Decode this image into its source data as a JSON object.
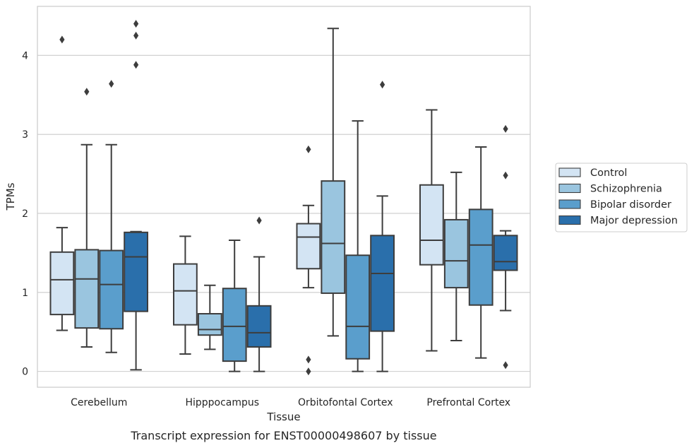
{
  "caption": "Transcript expression for ENST00000498607 by tissue",
  "chart_data": {
    "type": "box",
    "xlabel": "Tissue",
    "ylabel": "TPMs",
    "ylim": [
      -0.2,
      4.62
    ],
    "yticks": [
      0,
      1,
      2,
      3,
      4
    ],
    "grid": true,
    "legend_position": "right",
    "categories": [
      "Cerebellum",
      "Hipppocampus",
      "Orbitofontal Cortex",
      "Prefrontal Cortex"
    ],
    "series": [
      {
        "name": "Control",
        "color": "#d3e4f3",
        "boxes": [
          {
            "whisker_low": 0.52,
            "q1": 0.72,
            "median": 1.16,
            "q3": 1.51,
            "whisker_high": 1.82,
            "outliers": [
              4.2
            ]
          },
          {
            "whisker_low": 0.22,
            "q1": 0.59,
            "median": 1.02,
            "q3": 1.36,
            "whisker_high": 1.71,
            "outliers": []
          },
          {
            "whisker_low": 1.06,
            "q1": 1.3,
            "median": 1.7,
            "q3": 1.87,
            "whisker_high": 2.1,
            "outliers": [
              2.81,
              0.15,
              0.0
            ]
          },
          {
            "whisker_low": 0.26,
            "q1": 1.35,
            "median": 1.66,
            "q3": 2.36,
            "whisker_high": 3.31,
            "outliers": []
          }
        ]
      },
      {
        "name": "Schizophrenia",
        "color": "#9ac5df",
        "boxes": [
          {
            "whisker_low": 0.31,
            "q1": 0.55,
            "median": 1.17,
            "q3": 1.54,
            "whisker_high": 2.87,
            "outliers": [
              3.54
            ]
          },
          {
            "whisker_low": 0.28,
            "q1": 0.46,
            "median": 0.53,
            "q3": 0.73,
            "whisker_high": 1.09,
            "outliers": []
          },
          {
            "whisker_low": 0.45,
            "q1": 0.99,
            "median": 1.62,
            "q3": 2.41,
            "whisker_high": 4.34,
            "outliers": []
          },
          {
            "whisker_low": 0.39,
            "q1": 1.06,
            "median": 1.4,
            "q3": 1.92,
            "whisker_high": 2.52,
            "outliers": []
          }
        ]
      },
      {
        "name": "Bipolar disorder",
        "color": "#5a9ecc",
        "boxes": [
          {
            "whisker_low": 0.24,
            "q1": 0.54,
            "median": 1.1,
            "q3": 1.53,
            "whisker_high": 2.87,
            "outliers": [
              3.64
            ]
          },
          {
            "whisker_low": 0.0,
            "q1": 0.13,
            "median": 0.57,
            "q3": 1.05,
            "whisker_high": 1.66,
            "outliers": []
          },
          {
            "whisker_low": 0.0,
            "q1": 0.16,
            "median": 0.57,
            "q3": 1.47,
            "whisker_high": 3.17,
            "outliers": []
          },
          {
            "whisker_low": 0.17,
            "q1": 0.84,
            "median": 1.6,
            "q3": 2.05,
            "whisker_high": 2.84,
            "outliers": []
          }
        ]
      },
      {
        "name": "Major depression",
        "color": "#2a6fab",
        "boxes": [
          {
            "whisker_low": 0.02,
            "q1": 0.76,
            "median": 1.45,
            "q3": 1.76,
            "whisker_high": 1.77,
            "outliers": [
              4.4,
              4.25,
              3.88
            ]
          },
          {
            "whisker_low": 0.0,
            "q1": 0.31,
            "median": 0.49,
            "q3": 0.83,
            "whisker_high": 1.45,
            "outliers": [
              1.91
            ]
          },
          {
            "whisker_low": 0.0,
            "q1": 0.51,
            "median": 1.24,
            "q3": 1.72,
            "whisker_high": 2.22,
            "outliers": [
              3.63
            ]
          },
          {
            "whisker_low": 0.77,
            "q1": 1.28,
            "median": 1.39,
            "q3": 1.72,
            "whisker_high": 1.78,
            "outliers": [
              3.07,
              2.48,
              0.08
            ]
          }
        ]
      }
    ]
  }
}
